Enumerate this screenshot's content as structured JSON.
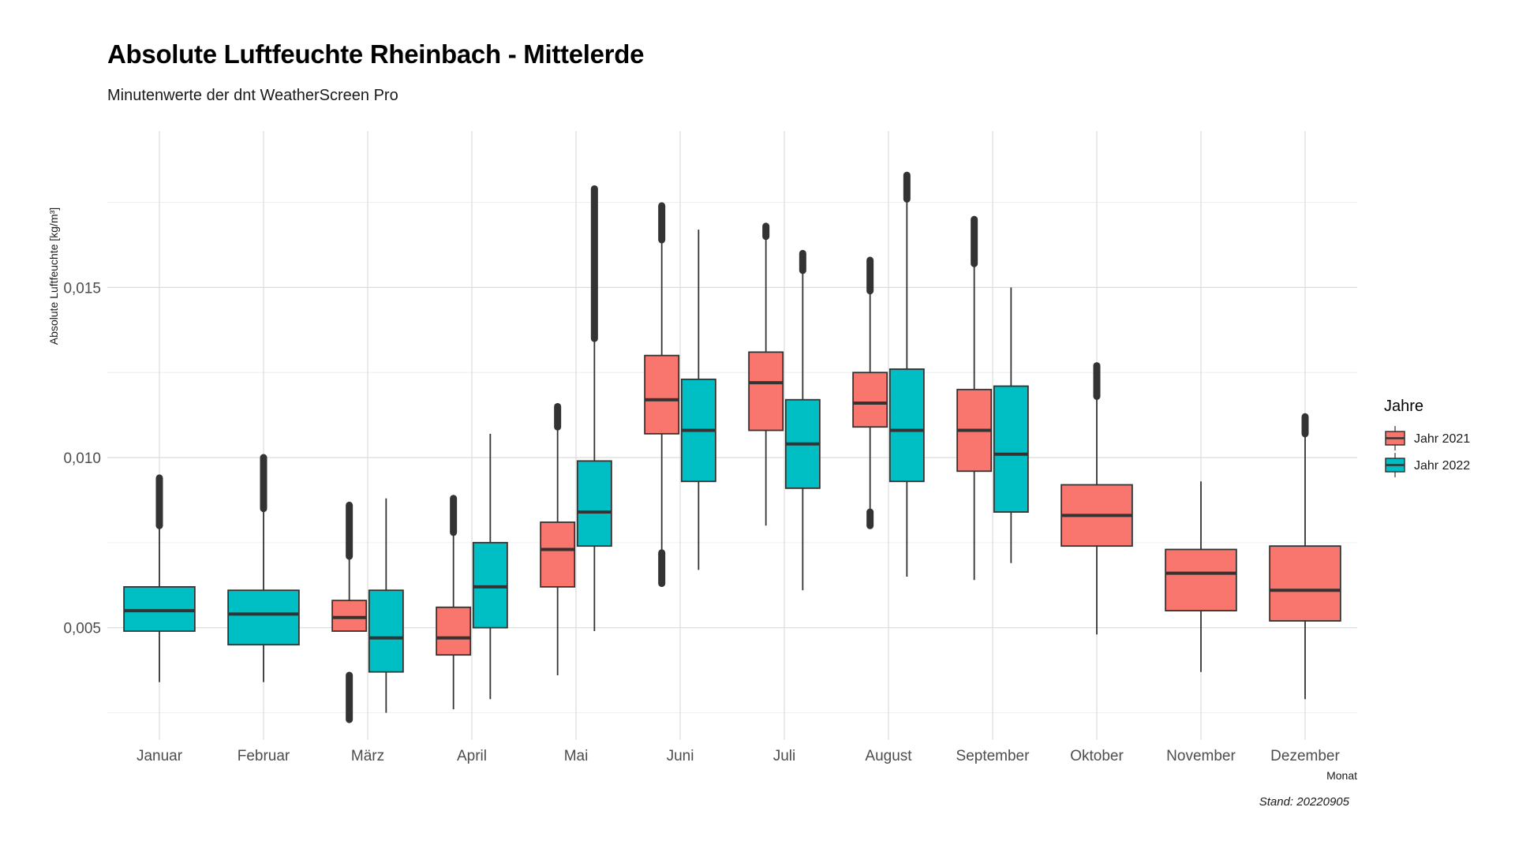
{
  "chart_data": {
    "type": "box",
    "title": "Absolute Luftfeuchte Rheinbach - Mittelerde",
    "subtitle": "Minutenwerte der dnt WeatherScreen Pro",
    "xlabel": "Monat",
    "ylabel": "Absolute Luftfeuchte [kg/m³]",
    "caption": "Stand: 20220905",
    "ylim": [
      0.0017,
      0.0196
    ],
    "yticks": [
      0.005,
      0.01,
      0.015
    ],
    "ytick_labels": [
      "0,005",
      "0,010",
      "0,015"
    ],
    "grid": true,
    "legend": {
      "title": "Jahre",
      "position": "right",
      "entries": [
        {
          "name": "Jahr 2021",
          "color": "#F8766D"
        },
        {
          "name": "Jahr 2022",
          "color": "#00BFC4"
        }
      ]
    },
    "categories": [
      "Januar",
      "Februar",
      "März",
      "April",
      "Mai",
      "Juni",
      "Juli",
      "August",
      "September",
      "Oktober",
      "November",
      "Dezember"
    ],
    "series": [
      {
        "name": "Jahr 2021",
        "color": "#F8766D",
        "boxes": [
          null,
          null,
          {
            "whisker_low": 0.0049,
            "q1": 0.0049,
            "median": 0.0053,
            "q3": 0.0058,
            "whisker_high": 0.0071,
            "outlier_ranges": [
              [
                0.0023,
                0.0036
              ],
              [
                0.0071,
                0.0086
              ]
            ]
          },
          {
            "whisker_low": 0.0026,
            "q1": 0.0042,
            "median": 0.0047,
            "q3": 0.0056,
            "whisker_high": 0.0078,
            "outlier_ranges": [
              [
                0.0078,
                0.0088
              ]
            ]
          },
          {
            "whisker_low": 0.0036,
            "q1": 0.0062,
            "median": 0.0073,
            "q3": 0.0081,
            "whisker_high": 0.0109,
            "outlier_ranges": [
              [
                0.0109,
                0.0115
              ]
            ]
          },
          {
            "whisker_low": 0.0072,
            "q1": 0.0107,
            "median": 0.0117,
            "q3": 0.013,
            "whisker_high": 0.0164,
            "outlier_ranges": [
              [
                0.0063,
                0.0072
              ],
              [
                0.0164,
                0.0174
              ]
            ]
          },
          {
            "whisker_low": 0.008,
            "q1": 0.0108,
            "median": 0.0122,
            "q3": 0.0131,
            "whisker_high": 0.0165,
            "outlier_ranges": [
              [
                0.0165,
                0.0168
              ]
            ]
          },
          {
            "whisker_low": 0.0085,
            "q1": 0.0109,
            "median": 0.0116,
            "q3": 0.0125,
            "whisker_high": 0.0149,
            "outlier_ranges": [
              [
                0.008,
                0.0084
              ],
              [
                0.0149,
                0.0158
              ]
            ]
          },
          {
            "whisker_low": 0.0064,
            "q1": 0.0096,
            "median": 0.0108,
            "q3": 0.012,
            "whisker_high": 0.0157,
            "outlier_ranges": [
              [
                0.0157,
                0.017
              ]
            ]
          },
          {
            "whisker_low": 0.0048,
            "q1": 0.0074,
            "median": 0.0083,
            "q3": 0.0092,
            "whisker_high": 0.0118,
            "outlier_ranges": [
              [
                0.0118,
                0.0127
              ]
            ]
          },
          {
            "whisker_low": 0.0037,
            "q1": 0.0055,
            "median": 0.0066,
            "q3": 0.0073,
            "whisker_high": 0.0093,
            "outlier_ranges": []
          },
          {
            "whisker_low": 0.0029,
            "q1": 0.0052,
            "median": 0.0061,
            "q3": 0.0074,
            "whisker_high": 0.0107,
            "outlier_ranges": [
              [
                0.0107,
                0.0112
              ]
            ]
          }
        ]
      },
      {
        "name": "Jahr 2022",
        "color": "#00BFC4",
        "boxes": [
          {
            "whisker_low": 0.0034,
            "q1": 0.0049,
            "median": 0.0055,
            "q3": 0.0062,
            "whisker_high": 0.008,
            "outlier_ranges": [
              [
                0.008,
                0.0094
              ]
            ]
          },
          {
            "whisker_low": 0.0034,
            "q1": 0.0045,
            "median": 0.0054,
            "q3": 0.0061,
            "whisker_high": 0.0085,
            "outlier_ranges": [
              [
                0.0085,
                0.01
              ]
            ]
          },
          {
            "whisker_low": 0.0025,
            "q1": 0.0037,
            "median": 0.0047,
            "q3": 0.0061,
            "whisker_high": 0.0088,
            "outlier_ranges": []
          },
          {
            "whisker_low": 0.0029,
            "q1": 0.005,
            "median": 0.0062,
            "q3": 0.0075,
            "whisker_high": 0.0107,
            "outlier_ranges": []
          },
          {
            "whisker_low": 0.0049,
            "q1": 0.0074,
            "median": 0.0084,
            "q3": 0.0099,
            "whisker_high": 0.0135,
            "outlier_ranges": [
              [
                0.0135,
                0.0179
              ]
            ]
          },
          {
            "whisker_low": 0.0067,
            "q1": 0.0093,
            "median": 0.0108,
            "q3": 0.0123,
            "whisker_high": 0.0167,
            "outlier_ranges": []
          },
          {
            "whisker_low": 0.0061,
            "q1": 0.0091,
            "median": 0.0104,
            "q3": 0.0117,
            "whisker_high": 0.0155,
            "outlier_ranges": [
              [
                0.0155,
                0.016
              ]
            ]
          },
          {
            "whisker_low": 0.0065,
            "q1": 0.0093,
            "median": 0.0108,
            "q3": 0.0126,
            "whisker_high": 0.0176,
            "outlier_ranges": [
              [
                0.0176,
                0.0183
              ]
            ]
          },
          {
            "whisker_low": 0.0069,
            "q1": 0.0084,
            "median": 0.0101,
            "q3": 0.0121,
            "whisker_high": 0.015,
            "outlier_ranges": []
          },
          null,
          null,
          null
        ]
      }
    ]
  }
}
